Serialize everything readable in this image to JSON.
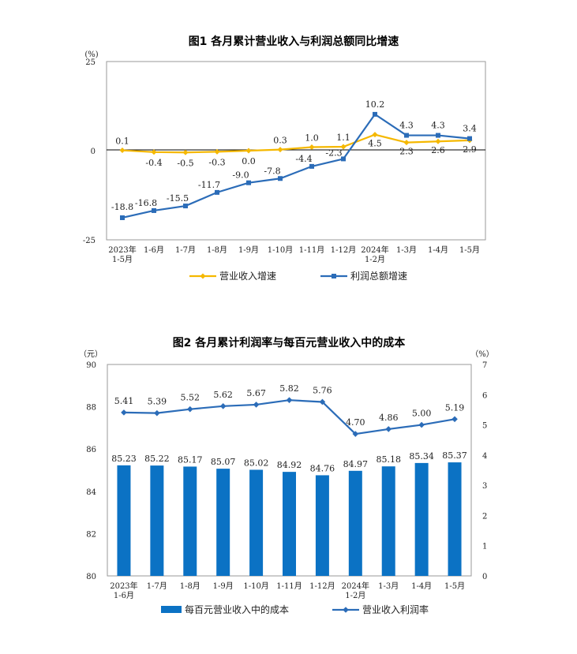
{
  "chart_data": [
    {
      "type": "line",
      "title": "图1  各月累计营业收入与利润总额同比增速",
      "yunit": "(%)",
      "ylim": [
        -25,
        25
      ],
      "yticks": [
        25,
        0,
        -25
      ],
      "grid": false,
      "categories": [
        [
          "2023年",
          "1-5月"
        ],
        [
          "1-6月"
        ],
        [
          "1-7月"
        ],
        [
          "1-8月"
        ],
        [
          "1-9月"
        ],
        [
          "1-10月"
        ],
        [
          "1-11月"
        ],
        [
          "1-12月"
        ],
        [
          "2024年",
          "1-2月"
        ],
        [
          "1-3月"
        ],
        [
          "1-4月"
        ],
        [
          "1-5月"
        ]
      ],
      "series": [
        {
          "name": "营业收入增速",
          "color": "#f5b800",
          "marker": "diamond",
          "values": [
            0.1,
            -0.4,
            -0.5,
            -0.3,
            0.0,
            0.3,
            1.0,
            1.1,
            4.5,
            2.3,
            2.6,
            2.9
          ],
          "labels": [
            "0.1",
            "-0.4",
            "-0.5",
            "-0.3",
            "0.0",
            "0.3",
            "1.0",
            "1.1",
            "4.5",
            "2.3",
            "2.6",
            "2.9"
          ]
        },
        {
          "name": "利润总额增速",
          "color": "#2b6cb8",
          "marker": "square",
          "values": [
            -18.8,
            -16.8,
            -15.5,
            -11.7,
            -9.0,
            -7.8,
            -4.4,
            -2.3,
            10.2,
            4.3,
            4.3,
            3.4
          ],
          "labels": [
            "-18.8",
            "-16.8",
            "-15.5",
            "-11.7",
            "-9.0",
            "-7.8",
            "-4.4",
            "-2.3",
            "10.2",
            "4.3",
            "4.3",
            "3.4"
          ]
        }
      ],
      "legend_position": "bottom"
    },
    {
      "type": "bar",
      "title": "图2  各月累计利润率与每百元营业收入中的成本",
      "y1unit": "（元）",
      "y2unit": "（%）",
      "ylim": [
        80,
        90
      ],
      "yticks": [
        90,
        88,
        86,
        84,
        82,
        80
      ],
      "y2lim": [
        0,
        7
      ],
      "y2ticks": [
        7,
        6,
        5,
        4,
        3,
        2,
        1,
        0
      ],
      "grid": false,
      "categories": [
        [
          "2023年",
          "1-6月"
        ],
        [
          "1-7月"
        ],
        [
          "1-8月"
        ],
        [
          "1-9月"
        ],
        [
          "1-10月"
        ],
        [
          "1-11月"
        ],
        [
          "1-12月"
        ],
        [
          "2024年",
          "1-2月"
        ],
        [
          "1-3月"
        ],
        [
          "1-4月"
        ],
        [
          "1-5月"
        ]
      ],
      "bar_series": {
        "name": "每百元营业收入中的成本",
        "color": "#0b72c4",
        "values": [
          85.23,
          85.22,
          85.17,
          85.07,
          85.02,
          84.92,
          84.76,
          84.97,
          85.18,
          85.34,
          85.37
        ],
        "labels": [
          "85.23",
          "85.22",
          "85.17",
          "85.07",
          "85.02",
          "84.92",
          "84.76",
          "84.97",
          "85.18",
          "85.34",
          "85.37"
        ]
      },
      "line_series": {
        "name": "营业收入利润率",
        "color": "#2b6cb8",
        "marker": "diamond",
        "values": [
          5.41,
          5.39,
          5.52,
          5.62,
          5.67,
          5.82,
          5.76,
          4.7,
          4.86,
          5.0,
          5.19
        ],
        "labels": [
          "5.41",
          "5.39",
          "5.52",
          "5.62",
          "5.67",
          "5.82",
          "5.76",
          "4.70",
          "4.86",
          "5.00",
          "5.19"
        ]
      },
      "legend_position": "bottom"
    }
  ]
}
